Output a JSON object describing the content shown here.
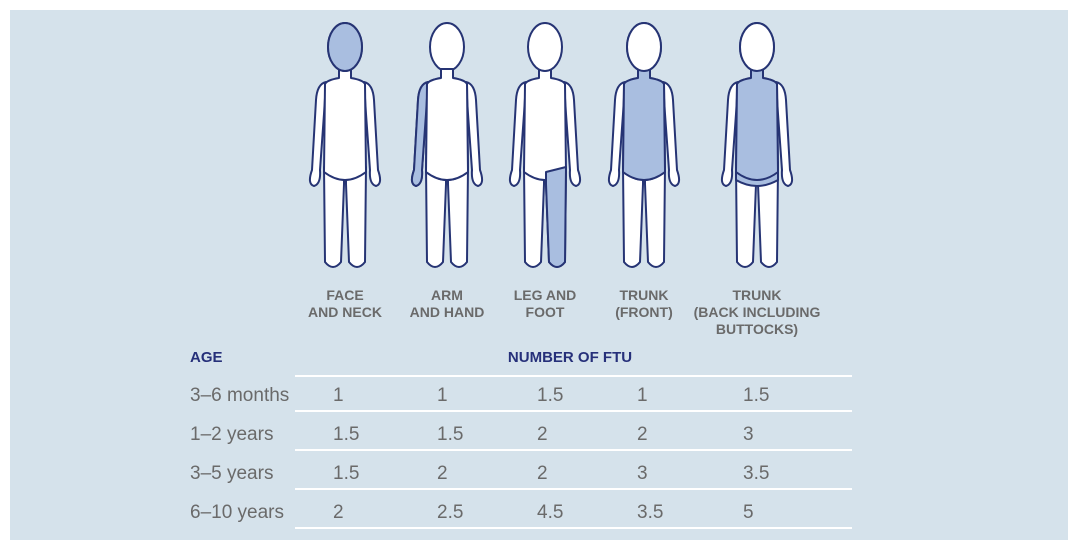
{
  "columns": [
    [
      "FACE",
      "AND NECK"
    ],
    [
      "ARM",
      "AND HAND"
    ],
    [
      "LEG AND",
      "FOOT"
    ],
    [
      "TRUNK",
      "(FRONT)"
    ],
    [
      "TRUNK",
      "(BACK INCLUDING",
      "BUTTOCKS)"
    ]
  ],
  "table": {
    "age_header": "AGE",
    "ftu_header": "NUMBER OF FTU",
    "rows": [
      {
        "age": "3–6 months",
        "values": [
          1,
          1,
          1.5,
          1,
          1.5
        ]
      },
      {
        "age": "1–2 years",
        "values": [
          1.5,
          1.5,
          2,
          2,
          3
        ]
      },
      {
        "age": "3–5 years",
        "values": [
          1.5,
          2,
          2,
          3,
          3.5
        ]
      },
      {
        "age": "6–10 years",
        "values": [
          2,
          2.5,
          4.5,
          3.5,
          5
        ]
      }
    ]
  }
}
